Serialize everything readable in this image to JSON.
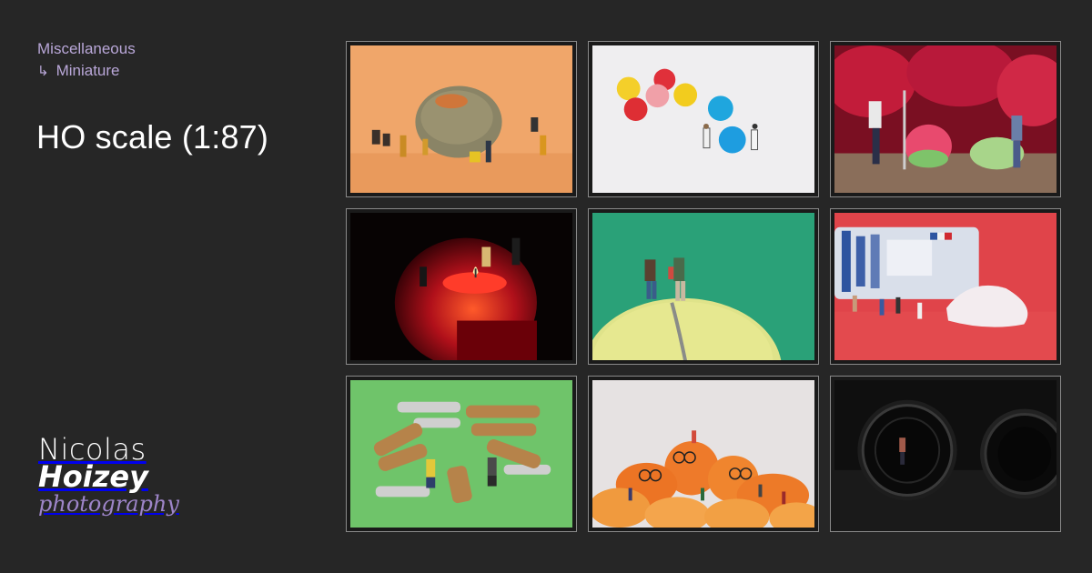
{
  "breadcrumb": {
    "parent": "Miscellaneous",
    "arrow": "↳",
    "current": "Miniature"
  },
  "title": "HO scale (1:87)",
  "logo": {
    "line1": "Nicolas",
    "line2": "Hoizey",
    "line3": "photography"
  },
  "colors": {
    "background": "#262626",
    "accent": "#b9a7d8",
    "logo_accent": "#9e85c9"
  },
  "gallery": [
    {
      "name": "miniature-moldy-bread"
    },
    {
      "name": "miniature-candy-balls"
    },
    {
      "name": "miniature-flowers-workers"
    },
    {
      "name": "miniature-red-candle"
    },
    {
      "name": "miniature-tennis-ball-hikers"
    },
    {
      "name": "miniature-antiseptic-spray"
    },
    {
      "name": "miniature-wooden-logs"
    },
    {
      "name": "miniature-oranges-cyclists"
    },
    {
      "name": "miniature-binoculars"
    }
  ]
}
